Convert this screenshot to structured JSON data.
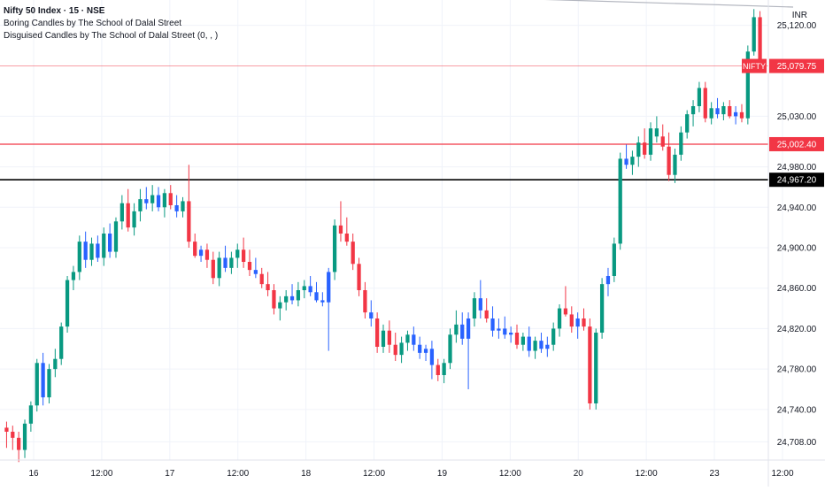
{
  "header": {
    "title": "Nifty 50 Index · 15 · NSE",
    "indicator_1": "Boring Candles by The School of Dalal Street",
    "indicator_2": "Disguised Candles by The School of Dalal Street (0, , )",
    "currency": "INR"
  },
  "colors": {
    "up": "#089981",
    "down": "#f23645",
    "boring": "#2962ff",
    "grid": "#f0f3fa",
    "axis_text": "#131722",
    "price_line": "#f23645",
    "support_line": "#000000",
    "trend_line": "#b2b5be"
  },
  "chart_data": {
    "type": "candlestick",
    "title": "Nifty 50 Index · 15 · NSE",
    "yaxis": {
      "ticks": [
        "24,708.00",
        "24,740.00",
        "24,780.00",
        "24,820.00",
        "24,860.00",
        "24,900.00",
        "24,940.00",
        "24,980.00",
        "25,030.00",
        "25,120.00"
      ],
      "range": [
        24690,
        25145
      ]
    },
    "xaxis": {
      "ticks": [
        "16",
        "12:00",
        "17",
        "12:00",
        "18",
        "12:00",
        "19",
        "12:00",
        "20",
        "12:00",
        "23",
        "12:00"
      ]
    },
    "price_labels": [
      {
        "label": "NIFTY",
        "value": "25,079.75",
        "price": 25079.75
      },
      {
        "label": "",
        "value": "25,002.40",
        "price": 25002.4
      },
      {
        "label": "",
        "value": "24,967.20",
        "price": 24967.2
      }
    ],
    "trend_line": {
      "from_price": 25162,
      "to_price": 25138
    },
    "candles": [
      [
        24722,
        24728,
        24702,
        24718,
        "d"
      ],
      [
        24718,
        24724,
        24700,
        24712,
        "d"
      ],
      [
        24712,
        24718,
        24688,
        24700,
        "d"
      ],
      [
        24700,
        24730,
        24692,
        24726,
        "u"
      ],
      [
        24726,
        24748,
        24718,
        24744,
        "u"
      ],
      [
        24744,
        24790,
        24738,
        24786,
        "u"
      ],
      [
        24786,
        24796,
        24744,
        24752,
        "b"
      ],
      [
        24752,
        24785,
        24746,
        24780,
        "u"
      ],
      [
        24780,
        24800,
        24772,
        24790,
        "u"
      ],
      [
        24790,
        24826,
        24784,
        24822,
        "u"
      ],
      [
        24822,
        24872,
        24816,
        24868,
        "u"
      ],
      [
        24868,
        24882,
        24858,
        24876,
        "u"
      ],
      [
        24876,
        24912,
        24868,
        24906,
        "u"
      ],
      [
        24906,
        24916,
        24880,
        24888,
        "b"
      ],
      [
        24888,
        24910,
        24882,
        24904,
        "u"
      ],
      [
        24904,
        24912,
        24886,
        24890,
        "b"
      ],
      [
        24890,
        24920,
        24882,
        24914,
        "u"
      ],
      [
        24914,
        24924,
        24890,
        24896,
        "b"
      ],
      [
        24896,
        24930,
        24890,
        24926,
        "u"
      ],
      [
        24926,
        24952,
        24918,
        24944,
        "u"
      ],
      [
        24944,
        24958,
        24916,
        24920,
        "d"
      ],
      [
        24920,
        24944,
        24912,
        24936,
        "u"
      ],
      [
        24936,
        24958,
        24926,
        24948,
        "u"
      ],
      [
        24948,
        24960,
        24938,
        24944,
        "b"
      ],
      [
        24944,
        24962,
        24936,
        24952,
        "u"
      ],
      [
        24952,
        24960,
        24936,
        24940,
        "b"
      ],
      [
        24940,
        24958,
        24930,
        24954,
        "u"
      ],
      [
        24954,
        24962,
        24938,
        24942,
        "d"
      ],
      [
        24942,
        24952,
        24930,
        24936,
        "b"
      ],
      [
        24936,
        24950,
        24930,
        24946,
        "u"
      ],
      [
        24946,
        24982,
        24900,
        24906,
        "d"
      ],
      [
        24906,
        24914,
        24890,
        24892,
        "d"
      ],
      [
        24892,
        24902,
        24886,
        24898,
        "b"
      ],
      [
        24898,
        24904,
        24880,
        24888,
        "d"
      ],
      [
        24888,
        24896,
        24864,
        24870,
        "d"
      ],
      [
        24870,
        24896,
        24862,
        24890,
        "u"
      ],
      [
        24890,
        24902,
        24876,
        24880,
        "b"
      ],
      [
        24880,
        24896,
        24874,
        24890,
        "u"
      ],
      [
        24890,
        24904,
        24880,
        24898,
        "u"
      ],
      [
        24898,
        24910,
        24880,
        24886,
        "d"
      ],
      [
        24886,
        24898,
        24872,
        24878,
        "d"
      ],
      [
        24878,
        24890,
        24870,
        24874,
        "b"
      ],
      [
        24874,
        24880,
        24860,
        24864,
        "d"
      ],
      [
        24864,
        24876,
        24852,
        24858,
        "d"
      ],
      [
        24858,
        24864,
        24834,
        24840,
        "d"
      ],
      [
        24840,
        24852,
        24828,
        24846,
        "u"
      ],
      [
        24846,
        24858,
        24838,
        24852,
        "u"
      ],
      [
        24852,
        24864,
        24844,
        24848,
        "b"
      ],
      [
        24848,
        24866,
        24842,
        24858,
        "u"
      ],
      [
        24858,
        24868,
        24850,
        24862,
        "u"
      ],
      [
        24862,
        24872,
        24852,
        24856,
        "b"
      ],
      [
        24856,
        24866,
        24846,
        24848,
        "b"
      ],
      [
        24848,
        24856,
        24842,
        24846,
        "b"
      ],
      [
        24846,
        24880,
        24798,
        24876,
        "b"
      ],
      [
        24876,
        24928,
        24868,
        24922,
        "u"
      ],
      [
        24922,
        24946,
        24906,
        24914,
        "d"
      ],
      [
        24914,
        24930,
        24902,
        24906,
        "d"
      ],
      [
        24906,
        24914,
        24878,
        24884,
        "d"
      ],
      [
        24884,
        24890,
        24852,
        24858,
        "d"
      ],
      [
        24858,
        24866,
        24830,
        24836,
        "d"
      ],
      [
        24836,
        24848,
        24822,
        24830,
        "b"
      ],
      [
        24830,
        24836,
        24796,
        24802,
        "d"
      ],
      [
        24802,
        24824,
        24796,
        24818,
        "u"
      ],
      [
        24818,
        24828,
        24796,
        24804,
        "d"
      ],
      [
        24804,
        24816,
        24788,
        24794,
        "d"
      ],
      [
        24794,
        24812,
        24786,
        24806,
        "u"
      ],
      [
        24806,
        24818,
        24798,
        24814,
        "u"
      ],
      [
        24814,
        24822,
        24798,
        24804,
        "b"
      ],
      [
        24804,
        24812,
        24790,
        24796,
        "b"
      ],
      [
        24796,
        24804,
        24788,
        24800,
        "b"
      ],
      [
        24800,
        24808,
        24770,
        24784,
        "b"
      ],
      [
        24784,
        24790,
        24768,
        24774,
        "d"
      ],
      [
        24774,
        24790,
        24766,
        24786,
        "u"
      ],
      [
        24786,
        24820,
        24780,
        24814,
        "u"
      ],
      [
        24814,
        24838,
        24806,
        24824,
        "u"
      ],
      [
        24824,
        24836,
        24804,
        24810,
        "b"
      ],
      [
        24810,
        24836,
        24760,
        24830,
        "b"
      ],
      [
        24830,
        24856,
        24822,
        24850,
        "u"
      ],
      [
        24850,
        24868,
        24830,
        24838,
        "b"
      ],
      [
        24838,
        24850,
        24826,
        24830,
        "d"
      ],
      [
        24830,
        24842,
        24812,
        24818,
        "b"
      ],
      [
        24818,
        24830,
        24810,
        24820,
        "b"
      ],
      [
        24820,
        24832,
        24810,
        24814,
        "b"
      ],
      [
        24814,
        24822,
        24806,
        24816,
        "b"
      ],
      [
        24816,
        24824,
        24800,
        24804,
        "d"
      ],
      [
        24804,
        24816,
        24798,
        24812,
        "u"
      ],
      [
        24812,
        24822,
        24792,
        24798,
        "b"
      ],
      [
        24798,
        24812,
        24790,
        24808,
        "u"
      ],
      [
        24808,
        24816,
        24796,
        24800,
        "b"
      ],
      [
        24800,
        24812,
        24792,
        24804,
        "b"
      ],
      [
        24804,
        24826,
        24798,
        24820,
        "u"
      ],
      [
        24820,
        24844,
        24812,
        24840,
        "u"
      ],
      [
        24840,
        24862,
        24832,
        24834,
        "d"
      ],
      [
        24834,
        24842,
        24816,
        24822,
        "d"
      ],
      [
        24822,
        24836,
        24810,
        24830,
        "b"
      ],
      [
        24830,
        24840,
        24818,
        24822,
        "d"
      ],
      [
        24822,
        24830,
        24740,
        24746,
        "d"
      ],
      [
        24746,
        24820,
        24740,
        24816,
        "u"
      ],
      [
        24816,
        24870,
        24810,
        24864,
        "u"
      ],
      [
        24864,
        24880,
        24852,
        24872,
        "b"
      ],
      [
        24872,
        24910,
        24866,
        24904,
        "u"
      ],
      [
        24904,
        24994,
        24898,
        24988,
        "u"
      ],
      [
        24988,
        25002,
        24978,
        24982,
        "b"
      ],
      [
        24982,
        24996,
        24972,
        24990,
        "u"
      ],
      [
        24990,
        25010,
        24980,
        25004,
        "u"
      ],
      [
        25004,
        25018,
        24988,
        24992,
        "d"
      ],
      [
        24992,
        25024,
        24986,
        25018,
        "u"
      ],
      [
        25018,
        25030,
        25004,
        25010,
        "u"
      ],
      [
        25010,
        25022,
        24996,
        25000,
        "d"
      ],
      [
        25000,
        25014,
        24966,
        24972,
        "d"
      ],
      [
        24972,
        24998,
        24964,
        24992,
        "u"
      ],
      [
        24992,
        25020,
        24986,
        25014,
        "u"
      ],
      [
        25014,
        25036,
        25008,
        25032,
        "u"
      ],
      [
        25032,
        25046,
        25020,
        25040,
        "u"
      ],
      [
        25040,
        25064,
        25034,
        25058,
        "u"
      ],
      [
        25058,
        25064,
        25024,
        25028,
        "d"
      ],
      [
        25028,
        25044,
        25022,
        25038,
        "u"
      ],
      [
        25038,
        25048,
        25028,
        25032,
        "b"
      ],
      [
        25032,
        25044,
        25026,
        25040,
        "u"
      ],
      [
        25040,
        25046,
        25028,
        25030,
        "d"
      ],
      [
        25030,
        25040,
        25022,
        25034,
        "b"
      ],
      [
        25034,
        25042,
        25024,
        25028,
        "d"
      ],
      [
        25028,
        25100,
        25022,
        25094,
        "u"
      ],
      [
        25094,
        25136,
        25090,
        25128,
        "u"
      ],
      [
        25128,
        25134,
        25076,
        25080,
        "d"
      ]
    ]
  }
}
